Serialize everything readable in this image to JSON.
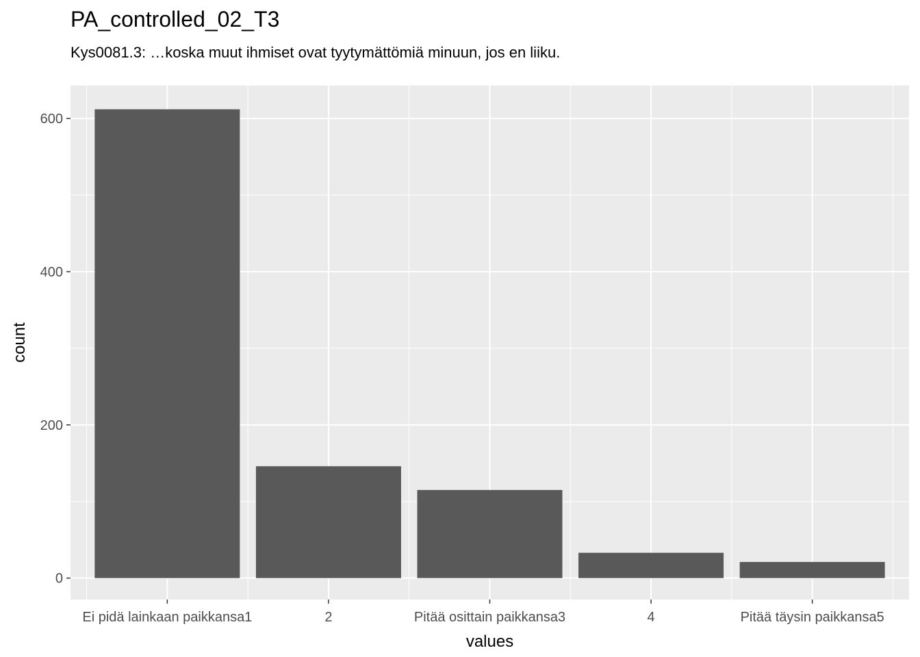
{
  "chart_data": {
    "type": "bar",
    "title": "PA_controlled_02_T3",
    "subtitle": "Kys0081.3: …koska muut ihmiset ovat tyytymättömiä minuun, jos en liiku.",
    "xlabel": "values",
    "ylabel": "count",
    "categories": [
      "Ei pidä lainkaan paikkansa1",
      "2",
      "Pitää osittain paikkansa3",
      "4",
      "Pitää täysin paikkansa5"
    ],
    "values": [
      612,
      146,
      115,
      33,
      21
    ],
    "ylim": [
      -28,
      643
    ],
    "yticks": [
      0,
      200,
      400,
      600
    ],
    "grid": true,
    "legend": "none",
    "colors": {
      "bar": "#595959",
      "panel": "#ebebeb",
      "grid": "#ffffff"
    }
  }
}
